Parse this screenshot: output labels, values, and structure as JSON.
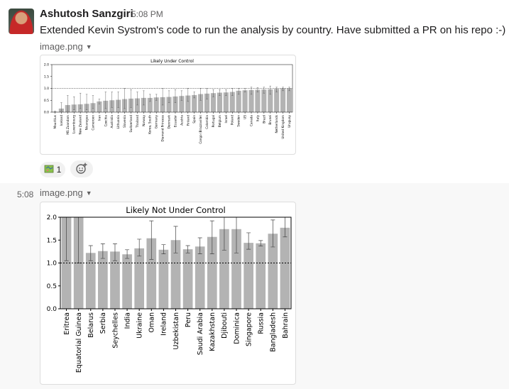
{
  "message": {
    "author": "Ashutosh Sanzgiri",
    "time": "5:08 PM",
    "text": "Extended Kevin Systrom's code to run the analysis by country. Have submitted a PR on his repo :-)",
    "attachment_label": "image.png"
  },
  "reactions": [
    {
      "emoji": "map-emoji",
      "count": "1"
    },
    {
      "emoji": "add-reaction-icon",
      "count": ""
    }
  ],
  "followup": {
    "time": "5:08",
    "attachment_label": "image.png"
  },
  "chart_data": [
    {
      "type": "bar",
      "title": "Likely Under Control",
      "ylim": [
        0,
        2.0
      ],
      "yticks": [
        "0.0",
        "0.5",
        "1.0",
        "1.5",
        "2.0"
      ],
      "reference_line": 1.0,
      "categories": [
        "Mauritius",
        "Iceland",
        "MS Zaandam",
        "Luxembourg",
        "New Zealand",
        "Nicaragua",
        "Cameroon",
        "Iran",
        "Czechia",
        "Australia",
        "Lithuania",
        "Slovenia",
        "Switzerland",
        "Thailand",
        "Norway",
        "Korea, South",
        "Germany",
        "Diamond Princess",
        "Denmark",
        "Ecuador",
        "Austria",
        "Finland",
        "Spain",
        "Congo (Brazzaville)",
        "Colombia",
        "Portugal",
        "Belgium",
        "Israel",
        "Poland",
        "Sweden",
        "US",
        "Canada",
        "Italy",
        "Brazil",
        "Brunei",
        "Netherlands",
        "United Kingdom",
        "Uruguay"
      ],
      "values": [
        0.02,
        0.15,
        0.3,
        0.32,
        0.33,
        0.35,
        0.38,
        0.45,
        0.48,
        0.5,
        0.52,
        0.55,
        0.57,
        0.58,
        0.6,
        0.6,
        0.62,
        0.63,
        0.64,
        0.66,
        0.68,
        0.7,
        0.72,
        0.76,
        0.78,
        0.8,
        0.82,
        0.83,
        0.85,
        0.9,
        0.92,
        0.93,
        0.94,
        0.95,
        0.96,
        0.98,
        1.0,
        1.0
      ],
      "err_low": [
        0.0,
        0.05,
        0.05,
        0.1,
        0.15,
        0.1,
        0.15,
        0.35,
        0.15,
        0.2,
        0.2,
        0.15,
        0.2,
        0.3,
        0.3,
        0.45,
        0.5,
        0.3,
        0.4,
        0.4,
        0.5,
        0.45,
        0.6,
        0.5,
        0.55,
        0.65,
        0.7,
        0.7,
        0.7,
        0.75,
        0.85,
        0.75,
        0.85,
        0.8,
        0.75,
        0.85,
        0.9,
        0.9
      ],
      "err_high": [
        0.05,
        0.4,
        0.7,
        0.65,
        0.8,
        0.75,
        0.7,
        0.55,
        0.85,
        0.85,
        0.85,
        1.0,
        0.95,
        0.85,
        0.9,
        0.75,
        0.75,
        1.0,
        0.9,
        0.95,
        0.9,
        1.0,
        0.85,
        1.0,
        1.0,
        0.95,
        0.95,
        0.95,
        1.0,
        1.0,
        1.0,
        1.05,
        1.03,
        1.05,
        1.1,
        1.05,
        1.05,
        1.05
      ]
    },
    {
      "type": "bar",
      "title": "Likely Not Under Control",
      "ylim": [
        0,
        2.0
      ],
      "yticks": [
        "0.0",
        "0.5",
        "1.0",
        "1.5",
        "2.0"
      ],
      "reference_line": 1.0,
      "categories": [
        "Eritrea",
        "Equatorial Guinea",
        "Belarus",
        "Serbia",
        "Seychelles",
        "India",
        "Ukraine",
        "Oman",
        "Ireland",
        "Uzbekistan",
        "Peru",
        "Saudi Arabia",
        "Kazakhstan",
        "Djibouti",
        "Dominica",
        "Singapore",
        "Russia",
        "Bangladesh",
        "Bahrain"
      ],
      "values": [
        2.0,
        2.0,
        1.22,
        1.26,
        1.25,
        1.19,
        1.32,
        1.54,
        1.29,
        1.5,
        1.3,
        1.36,
        1.57,
        1.74,
        1.74,
        1.44,
        1.43,
        1.64,
        1.77
      ],
      "err_low": [
        1.05,
        1.0,
        1.05,
        1.1,
        1.05,
        1.1,
        1.15,
        1.08,
        1.2,
        1.22,
        1.22,
        1.2,
        1.2,
        1.28,
        1.22,
        1.3,
        1.37,
        1.35,
        1.57
      ],
      "err_high": [
        2.0,
        2.0,
        1.38,
        1.42,
        1.42,
        1.29,
        1.52,
        1.92,
        1.4,
        1.8,
        1.38,
        1.55,
        1.92,
        2.0,
        2.0,
        1.66,
        1.49,
        1.94,
        2.0
      ]
    }
  ]
}
